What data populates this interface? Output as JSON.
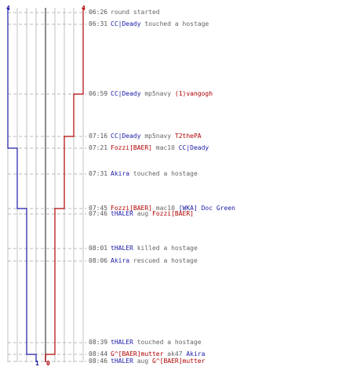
{
  "colors": {
    "blue": "#1a1aa8",
    "red": "#b00000",
    "gray": "#666666",
    "grid": "#c0c0c0",
    "dash": "#b8b8b8"
  },
  "labels": {
    "blue_start": "4",
    "red_start": "4",
    "blue_end": "1",
    "red_end": "0"
  },
  "events": [
    {
      "time": "06:26",
      "parts": [
        {
          "t": "round started",
          "c": "gray"
        }
      ]
    },
    {
      "time": "06:31",
      "parts": [
        {
          "t": "CC|Deady",
          "c": "blue"
        },
        {
          "t": " touched a hostage",
          "c": "gray"
        }
      ]
    },
    {
      "time": "06:59",
      "parts": [
        {
          "t": "CC|Deady",
          "c": "blue"
        },
        {
          "t": " mp5navy ",
          "c": "gray"
        },
        {
          "t": "(1)vangogh",
          "c": "red"
        }
      ]
    },
    {
      "time": "07:16",
      "parts": [
        {
          "t": "CC|Deady",
          "c": "blue"
        },
        {
          "t": " mp5navy ",
          "c": "gray"
        },
        {
          "t": "T2thePA",
          "c": "red"
        }
      ]
    },
    {
      "time": "07:21",
      "parts": [
        {
          "t": "Fozzi[BAER]",
          "c": "red"
        },
        {
          "t": " mac10 ",
          "c": "gray"
        },
        {
          "t": "CC|Deady",
          "c": "blue"
        }
      ]
    },
    {
      "time": "07:31",
      "parts": [
        {
          "t": "Akira",
          "c": "blue"
        },
        {
          "t": " touched a hostage",
          "c": "gray"
        }
      ]
    },
    {
      "time": "07:45",
      "parts": [
        {
          "t": "Fozzi[BAER]",
          "c": "red"
        },
        {
          "t": " mac10 ",
          "c": "gray"
        },
        {
          "t": "[WKA] Doc Green",
          "c": "blue"
        }
      ]
    },
    {
      "time": "07:46",
      "parts": [
        {
          "t": "tHALER",
          "c": "blue"
        },
        {
          "t": " aug ",
          "c": "gray"
        },
        {
          "t": "Fozzi[BAER]",
          "c": "red"
        }
      ]
    },
    {
      "time": "08:01",
      "parts": [
        {
          "t": "tHALER",
          "c": "blue"
        },
        {
          "t": " killed a hostage",
          "c": "gray"
        }
      ]
    },
    {
      "time": "08:06",
      "parts": [
        {
          "t": "Akira",
          "c": "blue"
        },
        {
          "t": " rescued a hostage",
          "c": "gray"
        }
      ]
    },
    {
      "time": "08:39",
      "parts": [
        {
          "t": "tHALER",
          "c": "blue"
        },
        {
          "t": " touched a hostage",
          "c": "gray"
        }
      ]
    },
    {
      "time": "08:44",
      "parts": [
        {
          "t": "G^[BAER]mutter",
          "c": "red"
        },
        {
          "t": " ak47 ",
          "c": "gray"
        },
        {
          "t": "Akira",
          "c": "blue"
        }
      ]
    },
    {
      "time": "08:46",
      "parts": [
        {
          "t": "tHALER",
          "c": "blue"
        },
        {
          "t": " aug ",
          "c": "gray"
        },
        {
          "t": "G^[BAER]mutter",
          "c": "red"
        }
      ]
    }
  ]
}
